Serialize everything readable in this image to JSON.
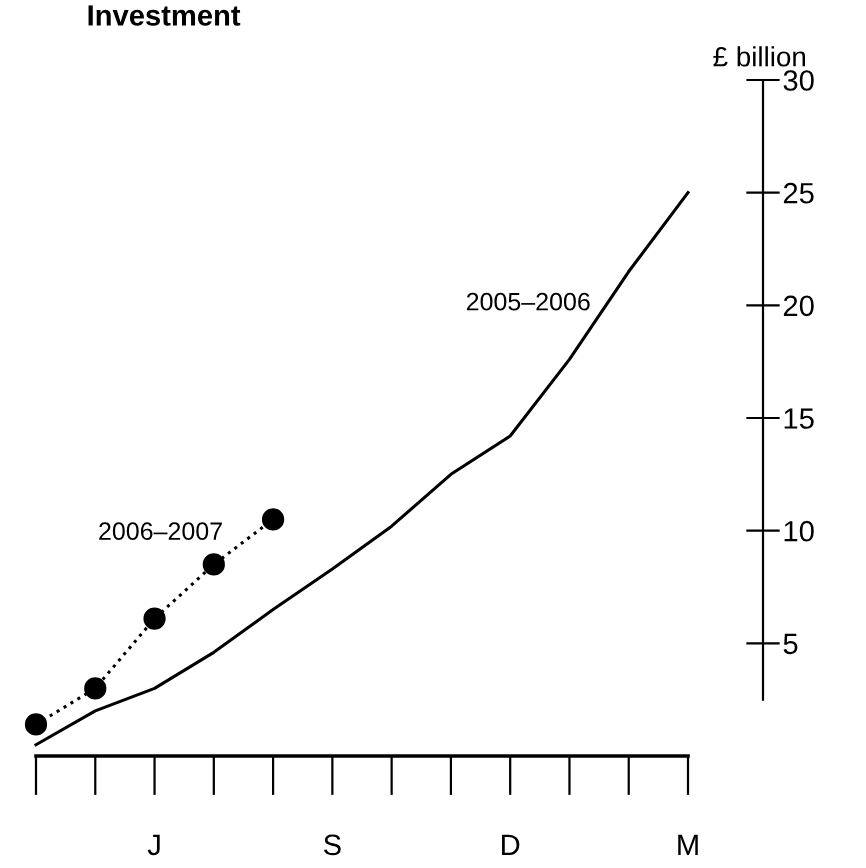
{
  "chart_data": {
    "type": "line",
    "title": "Investment",
    "ylabel": "£ billion",
    "categories": [
      null,
      null,
      "J",
      null,
      null,
      "S",
      null,
      null,
      "D",
      null,
      null,
      "M"
    ],
    "series": [
      {
        "name": "2005–2006",
        "color": "#000000",
        "line_style": "solid",
        "marker": "none",
        "values": [
          0.5,
          2.0,
          3.0,
          4.6,
          6.5,
          8.3,
          10.2,
          12.5,
          14.2,
          17.6,
          21.5,
          25.0
        ]
      },
      {
        "name": "2006–2007",
        "color": "#000000",
        "line_style": "dotted",
        "marker": "circle",
        "values": [
          1.4,
          3.0,
          6.1,
          8.5,
          10.5,
          null,
          null,
          null,
          null,
          null,
          null,
          null
        ]
      }
    ],
    "ylim": [
      0,
      30
    ],
    "yticks": [
      5,
      10,
      15,
      20,
      25,
      30
    ],
    "grid": false,
    "legend": false
  }
}
